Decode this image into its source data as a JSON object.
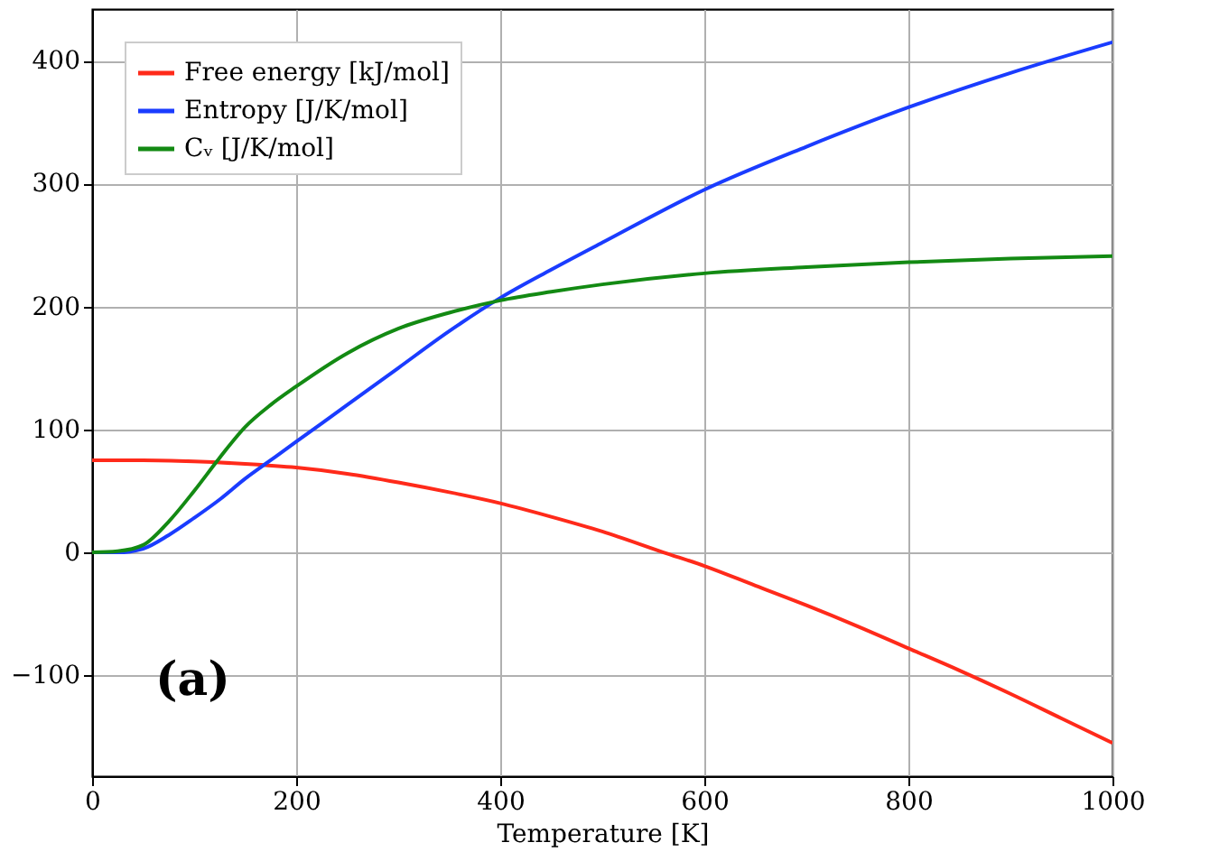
{
  "chart_data": {
    "type": "line",
    "xlabel": "Temperature [K]",
    "xlim": [
      0,
      1000
    ],
    "xticks": [
      0,
      200,
      400,
      600,
      800,
      1000
    ],
    "ylim": [
      -182,
      442
    ],
    "yticks": [
      -100,
      0,
      100,
      200,
      300,
      400
    ],
    "grid": true,
    "legend": "top left",
    "annotations": [
      "(a)"
    ],
    "series": [
      {
        "name": "Free energy [kJ/mol]",
        "color": "#ff2a1a",
        "x": [
          0,
          50,
          100,
          150,
          200,
          250,
          300,
          350,
          400,
          450,
          500,
          560,
          600,
          650,
          700,
          750,
          800,
          850,
          900,
          950,
          1000
        ],
        "values": [
          75,
          75,
          74,
          72,
          69,
          64,
          57,
          49,
          40,
          29,
          17,
          0,
          -11,
          -27,
          -43,
          -60,
          -78,
          -96,
          -115,
          -135,
          -155
        ]
      },
      {
        "name": "Entropy [J/K/mol]",
        "color": "#1a3cff",
        "x": [
          0,
          25,
          50,
          75,
          100,
          125,
          150,
          175,
          200,
          250,
          300,
          350,
          400,
          450,
          500,
          600,
          700,
          800,
          900,
          1000
        ],
        "values": [
          0,
          0,
          3,
          14,
          28,
          43,
          60,
          75,
          90,
          120,
          150,
          180,
          207,
          230,
          252,
          295,
          330,
          362,
          390,
          415
        ]
      },
      {
        "name": "Cᵥ [J/K/mol]",
        "color": "#138a13",
        "x": [
          0,
          25,
          50,
          75,
          100,
          125,
          150,
          175,
          200,
          250,
          300,
          350,
          400,
          450,
          500,
          600,
          700,
          800,
          900,
          1000
        ],
        "values": [
          0,
          1,
          6,
          25,
          50,
          77,
          102,
          120,
          135,
          162,
          182,
          195,
          205,
          212,
          218,
          227,
          232,
          236,
          239,
          241
        ]
      }
    ]
  }
}
